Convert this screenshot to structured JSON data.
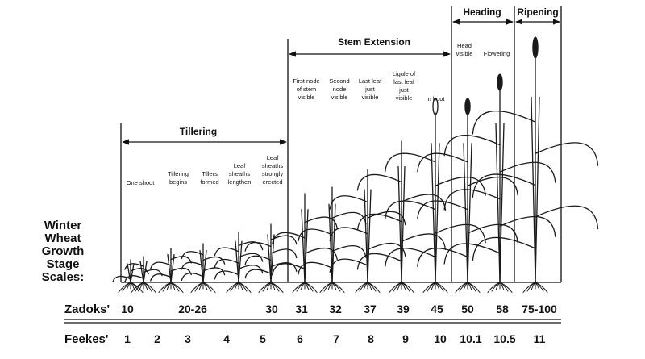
{
  "side_title": [
    "Winter",
    "Wheat",
    "Growth",
    "Stage",
    "Scales:"
  ],
  "phases": [
    {
      "key": "tillering",
      "label": "Tillering"
    },
    {
      "key": "stem",
      "label": "Stem Extension"
    },
    {
      "key": "heading",
      "label": "Heading"
    },
    {
      "key": "ripening",
      "label": "Ripening"
    }
  ],
  "stages": [
    {
      "zadoks": "10",
      "feekes": "1",
      "desc": [
        "One shoot"
      ]
    },
    {
      "zadoks": "",
      "feekes": "2",
      "desc": [
        "Tillering",
        "begins"
      ]
    },
    {
      "zadoks": "20-26",
      "feekes": "3",
      "desc": [
        "Tillers",
        "formed"
      ]
    },
    {
      "zadoks": "",
      "feekes": "4",
      "desc": [
        "Leaf",
        "sheaths",
        "lengthen"
      ]
    },
    {
      "zadoks": "30",
      "feekes": "5",
      "desc": [
        "Leaf",
        "sheaths",
        "strongly",
        "erected"
      ]
    },
    {
      "zadoks": "31",
      "feekes": "6",
      "desc": [
        "First node",
        "of stem",
        "visible"
      ]
    },
    {
      "zadoks": "32",
      "feekes": "7",
      "desc": [
        "Second",
        "node",
        "visible"
      ]
    },
    {
      "zadoks": "37",
      "feekes": "8",
      "desc": [
        "Last leaf",
        "just",
        "visible"
      ]
    },
    {
      "zadoks": "39",
      "feekes": "9",
      "desc": [
        "Ligule of",
        "last leaf",
        "just",
        "visible"
      ]
    },
    {
      "zadoks": "45",
      "feekes": "10",
      "desc": [
        "In boot"
      ]
    },
    {
      "zadoks": "50",
      "feekes": "10.1",
      "desc": [
        "Head",
        "visible"
      ]
    },
    {
      "zadoks": "58",
      "feekes": "10.5",
      "desc": [
        "Flowering"
      ]
    },
    {
      "zadoks": "75-100",
      "feekes": "11",
      "desc": []
    }
  ],
  "scales": {
    "zadoks_label": "Zadoks'",
    "feekes_label": "Feekes'"
  }
}
